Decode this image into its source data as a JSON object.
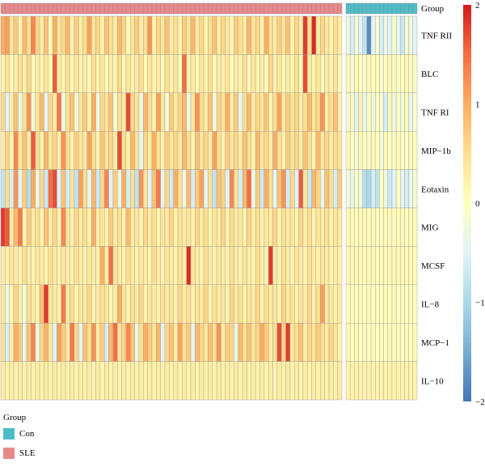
{
  "chart_data": {
    "type": "heatmap",
    "annotation_label": "Group",
    "rows": [
      "TNF RII",
      "BLC",
      "TNF RI",
      "MIP−1b",
      "Eotaxin",
      "MIG",
      "MCSF",
      "IL−8",
      "MCP−1",
      "IL−10"
    ],
    "groups": [
      {
        "name": "SLE",
        "count": 79,
        "color": "#E8888A"
      },
      {
        "name": "Con",
        "count": 17,
        "color": "#4DBCC9"
      }
    ],
    "colorbar": {
      "min": -2,
      "max": 2,
      "ticks": [
        "2",
        "1",
        "0",
        "−1",
        "−2"
      ],
      "stops": [
        "#D7191C",
        "#F46D43",
        "#FDAE61",
        "#FEE090",
        "#FFFFBF",
        "#E0F3F8",
        "#ABD9E9",
        "#74ADD1",
        "#4575B4"
      ]
    },
    "values": {
      "TNF RII": [
        1.0,
        1.1,
        0.4,
        0.7,
        0.2,
        0.9,
        0.5,
        1.3,
        0.6,
        0.3,
        0.8,
        0.1,
        1.0,
        0.4,
        0.6,
        0.9,
        0.2,
        0.7,
        0.3,
        0.5,
        1.1,
        0.4,
        0.6,
        0.2,
        0.8,
        0.5,
        0.3,
        0.9,
        0.6,
        0.1,
        0.4,
        0.7,
        0.3,
        0.5,
        1.2,
        0.2,
        0.6,
        0.4,
        0.8,
        0.3,
        0.5,
        0.2,
        0.7,
        0.4,
        0.9,
        0.3,
        0.6,
        0.2,
        0.5,
        0.8,
        0.3,
        0.6,
        0.4,
        0.1,
        0.7,
        0.5,
        0.3,
        0.9,
        0.4,
        0.6,
        0.2,
        1.0,
        0.5,
        0.3,
        0.7,
        0.4,
        0.8,
        0.2,
        0.6,
        0.3,
        1.8,
        0.5,
        1.9,
        0.3,
        0.6,
        0.4,
        0.2,
        0.5,
        0.3,
        -0.3,
        -0.6,
        -0.2,
        -0.5,
        -0.8,
        -1.8,
        -0.4,
        -0.2,
        -0.6,
        -0.3,
        -0.5,
        -0.1,
        -0.4,
        -0.7,
        -0.2,
        -0.3,
        -0.5
      ],
      "BLC": [
        0.2,
        0.4,
        0.1,
        0.3,
        0.5,
        0.2,
        0.6,
        0.1,
        0.3,
        0.2,
        0.4,
        0.1,
        1.6,
        0.3,
        0.2,
        0.5,
        0.1,
        0.4,
        0.2,
        0.3,
        0.1,
        0.5,
        0.2,
        0.4,
        0.1,
        0.3,
        0.2,
        0.6,
        0.1,
        0.4,
        0.2,
        0.3,
        0.5,
        0.1,
        0.4,
        0.2,
        0.3,
        0.1,
        0.5,
        0.2,
        0.4,
        0.1,
        1.5,
        0.2,
        0.3,
        0.1,
        0.4,
        0.2,
        0.5,
        0.1,
        0.3,
        0.2,
        0.4,
        0.1,
        0.3,
        0.2,
        0.5,
        0.1,
        0.4,
        0.2,
        0.3,
        0.1,
        0.6,
        0.2,
        0.4,
        0.1,
        0.3,
        0.2,
        0.5,
        0.1,
        1.7,
        0.3,
        0.2,
        0.4,
        0.1,
        0.3,
        0.2,
        0.4,
        0.1,
        0.1,
        -0.2,
        0.1,
        0.0,
        -0.1,
        0.1,
        0.0,
        0.1,
        -0.1,
        0.0,
        0.1,
        0.0,
        -0.1,
        0.0,
        0.1,
        0.0,
        -0.1
      ],
      "TNF RI": [
        0.6,
        -0.5,
        0.3,
        0.8,
        -0.3,
        0.5,
        1.2,
        -0.2,
        0.4,
        0.9,
        -0.4,
        0.6,
        0.3,
        1.4,
        -0.3,
        0.5,
        0.8,
        -0.2,
        0.4,
        0.7,
        0.2,
        1.0,
        -0.3,
        0.6,
        0.4,
        0.8,
        -0.2,
        0.5,
        0.3,
        1.7,
        0.6,
        0.4,
        -0.3,
        0.9,
        0.5,
        0.2,
        1.1,
        0.4,
        -0.2,
        0.7,
        0.3,
        0.6,
        0.9,
        -0.3,
        0.4,
        1.2,
        0.5,
        0.3,
        0.8,
        -0.2,
        0.6,
        0.4,
        1.0,
        0.3,
        0.7,
        -0.4,
        0.5,
        0.9,
        0.3,
        0.6,
        0.4,
        0.8,
        0.2,
        0.5,
        1.1,
        0.3,
        0.7,
        0.4,
        0.6,
        0.3,
        0.5,
        0.9,
        0.4,
        0.6,
        1.2,
        0.3,
        0.5,
        0.8,
        0.2,
        -0.2,
        0.1,
        -0.5,
        0.2,
        -0.4,
        0.0,
        -0.3,
        0.1,
        -0.2,
        -0.6,
        0.1,
        -0.3,
        0.0,
        -0.2,
        0.1,
        -0.4,
        -0.1
      ],
      "MIP−1b": [
        0.3,
        0.6,
        0.2,
        1.3,
        0.4,
        0.8,
        0.3,
        1.6,
        0.5,
        0.2,
        0.9,
        0.4,
        0.6,
        0.3,
        1.2,
        0.5,
        0.2,
        0.7,
        0.4,
        0.3,
        1.1,
        0.5,
        0.2,
        0.8,
        0.4,
        0.6,
        0.3,
        1.7,
        0.5,
        0.2,
        0.9,
        0.4,
        -0.4,
        0.6,
        0.3,
        1.0,
        0.5,
        0.2,
        0.7,
        0.4,
        0.6,
        0.3,
        0.9,
        0.5,
        0.2,
        0.8,
        0.4,
        0.6,
        0.3,
        1.1,
        0.5,
        0.2,
        0.7,
        0.4,
        0.6,
        0.3,
        0.8,
        0.5,
        0.2,
        0.9,
        0.4,
        0.6,
        0.3,
        1.0,
        0.5,
        0.2,
        0.7,
        0.4,
        0.6,
        0.3,
        0.8,
        0.5,
        0.2,
        0.9,
        0.4,
        0.6,
        0.3,
        0.5,
        0.4,
        0.1,
        0.0,
        -0.2,
        0.1,
        0.0,
        -0.1,
        0.1,
        0.0,
        -0.2,
        0.1,
        0.0,
        -0.1,
        0.1,
        0.0,
        -0.1,
        0.1,
        0.0
      ],
      "Eotaxin": [
        -0.8,
        0.5,
        -0.6,
        1.2,
        -0.4,
        0.7,
        -0.9,
        1.0,
        -0.3,
        0.6,
        -0.7,
        1.5,
        1.7,
        -0.5,
        0.8,
        -0.6,
        0.4,
        -0.8,
        1.1,
        0.5,
        -0.4,
        0.9,
        -0.7,
        0.6,
        1.3,
        -0.5,
        0.7,
        -0.3,
        1.0,
        -0.6,
        0.5,
        -0.8,
        1.2,
        0.4,
        -0.5,
        0.8,
        1.4,
        -0.4,
        0.6,
        -0.7,
        1.0,
        0.5,
        -0.3,
        0.9,
        -0.6,
        0.7,
        1.1,
        -0.4,
        0.5,
        -0.8,
        0.8,
        0.6,
        -0.5,
        1.3,
        0.4,
        -0.6,
        0.9,
        1.5,
        -0.3,
        0.7,
        -0.7,
        1.0,
        0.5,
        -0.4,
        0.8,
        1.2,
        -0.6,
        0.6,
        -0.5,
        1.6,
        0.4,
        -0.7,
        0.9,
        0.6,
        -0.3,
        0.8,
        0.5,
        -0.6,
        0.7,
        -0.2,
        -0.4,
        0.0,
        -0.3,
        -0.9,
        -1.0,
        -0.6,
        -0.8,
        0.0,
        -0.3,
        -0.7,
        -0.5,
        0.0,
        -0.4,
        -0.6,
        -0.3,
        -0.2
      ],
      "MIG": [
        1.8,
        1.6,
        0.3,
        0.9,
        1.4,
        0.2,
        0.7,
        0.3,
        0.5,
        0.2,
        0.8,
        0.3,
        0.6,
        0.2,
        1.3,
        0.4,
        0.2,
        0.6,
        0.3,
        0.5,
        0.2,
        1.0,
        0.3,
        0.4,
        0.2,
        0.7,
        0.3,
        0.5,
        0.2,
        0.9,
        0.3,
        0.4,
        0.2,
        0.6,
        0.3,
        0.5,
        0.2,
        0.4,
        0.3,
        0.6,
        0.2,
        0.5,
        0.3,
        0.4,
        0.2,
        0.6,
        0.3,
        0.5,
        0.2,
        0.4,
        0.3,
        0.6,
        0.2,
        0.5,
        0.3,
        0.4,
        0.2,
        0.6,
        0.3,
        0.5,
        0.2,
        0.4,
        0.3,
        0.6,
        0.2,
        0.5,
        0.3,
        0.4,
        0.2,
        0.6,
        0.3,
        0.5,
        0.2,
        0.4,
        0.3,
        0.5,
        0.2,
        0.4,
        0.3,
        0.1,
        0.1,
        0.0,
        0.1,
        0.1,
        0.0,
        0.1,
        0.1,
        0.0,
        0.1,
        0.1,
        0.0,
        0.1,
        0.1,
        0.0,
        0.1,
        0.1
      ],
      "MCSF": [
        0.3,
        0.2,
        0.4,
        0.3,
        0.2,
        0.5,
        0.3,
        0.2,
        0.4,
        0.3,
        0.2,
        0.5,
        0.3,
        0.2,
        0.4,
        0.3,
        0.2,
        0.5,
        0.3,
        0.2,
        0.4,
        0.3,
        0.2,
        1.0,
        0.3,
        1.5,
        0.4,
        0.3,
        0.2,
        0.5,
        0.3,
        0.2,
        0.4,
        0.3,
        0.2,
        0.5,
        0.3,
        0.2,
        0.4,
        0.3,
        0.2,
        0.5,
        0.3,
        1.9,
        0.4,
        0.3,
        0.2,
        0.5,
        0.3,
        0.2,
        0.4,
        0.3,
        0.2,
        0.5,
        0.3,
        0.2,
        0.4,
        0.3,
        0.2,
        0.5,
        0.3,
        0.2,
        1.8,
        0.3,
        0.2,
        0.5,
        0.3,
        0.2,
        0.4,
        0.3,
        0.2,
        0.5,
        0.3,
        0.2,
        0.4,
        0.3,
        0.2,
        0.3,
        0.2,
        0.1,
        0.1,
        0.1,
        0.1,
        0.1,
        0.1,
        0.1,
        0.1,
        0.1,
        0.1,
        0.1,
        0.1,
        0.1,
        0.1,
        0.1,
        0.1,
        0.1
      ],
      "IL−8": [
        0.4,
        -0.3,
        0.2,
        0.6,
        0.3,
        -0.2,
        0.5,
        0.3,
        0.2,
        0.8,
        1.8,
        0.4,
        0.3,
        0.2,
        1.4,
        0.3,
        0.5,
        0.2,
        0.4,
        0.3,
        0.6,
        0.2,
        0.3,
        0.5,
        0.4,
        0.2,
        0.3,
        1.0,
        0.4,
        0.2,
        0.5,
        0.3,
        0.6,
        0.2,
        0.4,
        0.3,
        0.2,
        0.5,
        0.3,
        0.4,
        0.2,
        0.6,
        0.3,
        0.5,
        0.2,
        0.4,
        0.3,
        0.6,
        0.2,
        0.5,
        0.3,
        0.4,
        0.2,
        0.6,
        0.3,
        0.5,
        0.2,
        0.4,
        0.3,
        0.6,
        0.2,
        0.5,
        0.3,
        0.4,
        0.2,
        0.6,
        0.3,
        0.5,
        0.2,
        0.4,
        0.3,
        0.6,
        0.2,
        0.5,
        1.1,
        0.3,
        0.4,
        0.2,
        0.3,
        0.0,
        0.1,
        0.0,
        0.1,
        0.0,
        0.1,
        0.0,
        0.1,
        0.0,
        0.1,
        0.0,
        0.1,
        0.0,
        0.1,
        0.0,
        0.1,
        0.0
      ],
      "MCP−1": [
        0.5,
        -0.6,
        0.3,
        1.0,
        0.7,
        -0.4,
        0.8,
        1.3,
        -0.3,
        0.6,
        0.9,
        0.4,
        -0.5,
        1.1,
        0.7,
        0.3,
        1.4,
        0.6,
        -0.4,
        0.8,
        0.5,
        1.2,
        0.3,
        0.7,
        -0.6,
        0.9,
        1.5,
        0.4,
        0.6,
        1.3,
        0.8,
        -0.3,
        0.5,
        1.0,
        0.7,
        0.4,
        0.9,
        -0.5,
        0.6,
        0.8,
        0.3,
        1.1,
        0.5,
        0.7,
        -0.4,
        0.9,
        0.6,
        0.4,
        0.8,
        0.5,
        1.2,
        0.3,
        0.7,
        0.6,
        -0.3,
        0.9,
        0.5,
        0.8,
        0.4,
        0.6,
        1.0,
        0.7,
        0.3,
        0.5,
        1.7,
        0.6,
        1.8,
        0.4,
        0.5,
        0.8,
        0.3,
        0.6,
        0.4,
        0.7,
        0.5,
        0.3,
        0.6,
        0.4,
        0.2,
        0.1,
        0.0,
        0.1,
        0.0,
        0.1,
        0.0,
        0.1,
        0.0,
        0.1,
        0.0,
        0.1,
        0.0,
        0.1,
        0.0,
        0.1,
        0.0,
        0.1
      ],
      "IL−10": [
        0.3,
        0.2,
        0.3,
        0.2,
        0.3,
        0.2,
        0.3,
        0.2,
        0.3,
        0.2,
        0.3,
        0.2,
        0.3,
        0.2,
        0.3,
        0.2,
        0.3,
        0.2,
        0.3,
        0.2,
        0.3,
        0.2,
        0.3,
        0.2,
        0.3,
        0.2,
        0.3,
        0.2,
        0.3,
        0.2,
        0.3,
        0.2,
        0.3,
        0.2,
        0.3,
        0.2,
        0.3,
        0.2,
        0.3,
        0.2,
        0.3,
        0.2,
        0.3,
        0.2,
        0.3,
        0.2,
        0.3,
        0.2,
        0.3,
        0.2,
        0.3,
        0.2,
        0.3,
        0.2,
        0.3,
        0.2,
        0.3,
        0.2,
        0.3,
        0.2,
        0.3,
        0.2,
        0.3,
        0.2,
        0.3,
        0.2,
        0.3,
        0.2,
        0.3,
        0.2,
        0.3,
        0.2,
        0.3,
        0.2,
        0.3,
        0.2,
        0.3,
        0.2,
        0.3,
        0.2,
        0.2,
        0.2,
        0.2,
        0.2,
        0.2,
        0.2,
        0.2,
        0.2,
        0.2,
        0.2,
        0.2,
        0.2,
        0.2,
        0.2,
        0.2,
        0.2
      ]
    }
  },
  "legend": {
    "title": "Group",
    "items": [
      {
        "label": "Con",
        "color": "#4DBCC9"
      },
      {
        "label": "SLE",
        "color": "#E8888A"
      }
    ]
  }
}
